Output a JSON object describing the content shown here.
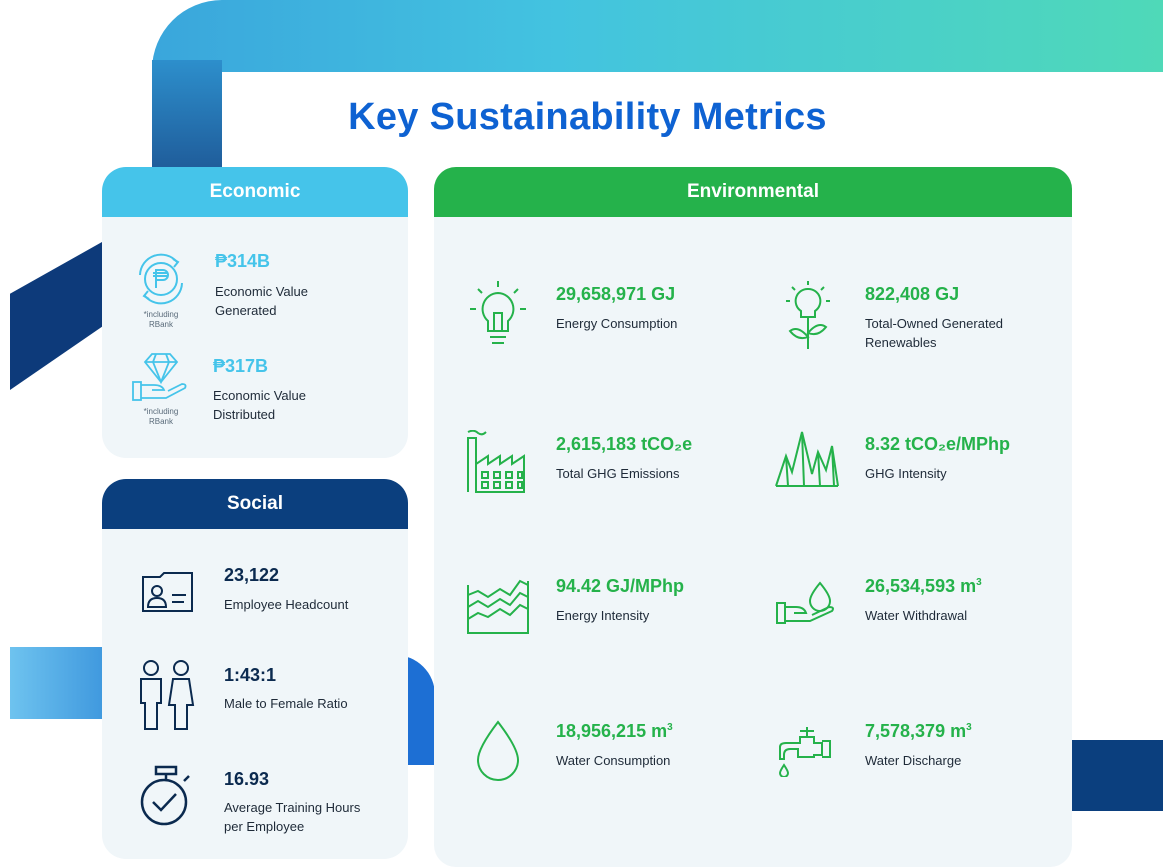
{
  "title": "Key Sustainability Metrics",
  "colors": {
    "economic": "#45c4ea",
    "social": "#0b3f7e",
    "environmental": "#25b24b",
    "title": "#0e62d2"
  },
  "economic": {
    "header": "Economic",
    "items": [
      {
        "value": "₱314B",
        "label1": "Economic Value",
        "label2": "Generated",
        "note1": "*including",
        "note2": "RBank",
        "icon": "peso-cycle-icon"
      },
      {
        "value": "₱317B",
        "label1": "Economic Value",
        "label2": "Distributed",
        "note1": "*including",
        "note2": "RBank",
        "icon": "diamond-hand-icon"
      }
    ]
  },
  "social": {
    "header": "Social",
    "items": [
      {
        "value": "23,122",
        "label1": "Employee Headcount",
        "label2": "",
        "icon": "id-card-icon"
      },
      {
        "value": "1:43:1",
        "label1": "Male to Female Ratio",
        "label2": "",
        "icon": "male-female-icon"
      },
      {
        "value": "16.93",
        "label1": "Average Training Hours",
        "label2": "per Employee",
        "icon": "stopwatch-check-icon"
      }
    ]
  },
  "environmental": {
    "header": "Environmental",
    "items": [
      {
        "value": "29,658,971 GJ",
        "label1": "Energy Consumption",
        "label2": "",
        "icon": "lightbulb-icon"
      },
      {
        "value": "822,408 GJ",
        "label1": "Total-Owned Generated",
        "label2": "Renewables",
        "icon": "bulb-plant-icon"
      },
      {
        "value": "2,615,183 tCO₂e",
        "label1": "Total GHG Emissions",
        "label2": "",
        "icon": "factory-icon"
      },
      {
        "value": "8.32 tCO₂e/MPhp",
        "label1": "GHG Intensity",
        "label2": "",
        "icon": "peaks-icon"
      },
      {
        "value": "94.42 GJ/MPhp",
        "label1": "Energy Intensity",
        "label2": "",
        "icon": "area-lines-icon"
      },
      {
        "value": "26,534,593 m",
        "sup": "3",
        "label1": "Water Withdrawal",
        "label2": "",
        "icon": "hand-water-drop-icon"
      },
      {
        "value": "18,956,215 m",
        "sup": "3",
        "label1": "Water Consumption",
        "label2": "",
        "icon": "water-drop-icon"
      },
      {
        "value": "7,578,379 m",
        "sup": "3",
        "label1": "Water Discharge",
        "label2": "",
        "icon": "faucet-icon"
      }
    ]
  }
}
